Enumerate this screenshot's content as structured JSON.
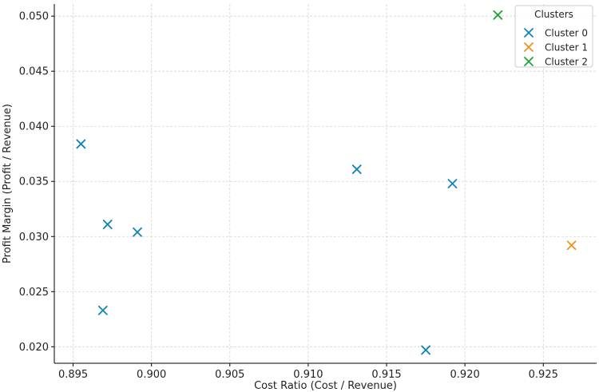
{
  "chart_data": {
    "type": "scatter",
    "title": "",
    "xlabel": "Cost Ratio (Cost / Revenue)",
    "ylabel": "Profit Margin (Profit / Revenue)",
    "xlim": [
      0.8938,
      0.9284
    ],
    "ylim": [
      0.0185,
      0.0511
    ],
    "xticks": [
      0.895,
      0.9,
      0.905,
      0.91,
      0.915,
      0.92,
      0.925
    ],
    "yticks": [
      0.02,
      0.025,
      0.03,
      0.035,
      0.04,
      0.045,
      0.05
    ],
    "xtick_labels": [
      "0.895",
      "0.900",
      "0.905",
      "0.910",
      "0.915",
      "0.920",
      "0.925"
    ],
    "ytick_labels": [
      "0.020",
      "0.025",
      "0.030",
      "0.035",
      "0.040",
      "0.045",
      "0.050"
    ],
    "grid": true,
    "marker": "x",
    "legend": {
      "title": "Clusters",
      "position": "top-right"
    },
    "series": [
      {
        "name": "Cluster 0",
        "color": "#0f85b8",
        "points": [
          {
            "x": 0.8955,
            "y": 0.0384
          },
          {
            "x": 0.8969,
            "y": 0.0233
          },
          {
            "x": 0.8972,
            "y": 0.0311
          },
          {
            "x": 0.8991,
            "y": 0.0304
          },
          {
            "x": 0.9131,
            "y": 0.0361
          },
          {
            "x": 0.9175,
            "y": 0.0197
          },
          {
            "x": 0.9192,
            "y": 0.0348
          }
        ]
      },
      {
        "name": "Cluster 1",
        "color": "#f0921c",
        "points": [
          {
            "x": 0.9268,
            "y": 0.0292
          }
        ]
      },
      {
        "name": "Cluster 2",
        "color": "#1fa53c",
        "points": [
          {
            "x": 0.9221,
            "y": 0.0501
          }
        ]
      }
    ]
  }
}
